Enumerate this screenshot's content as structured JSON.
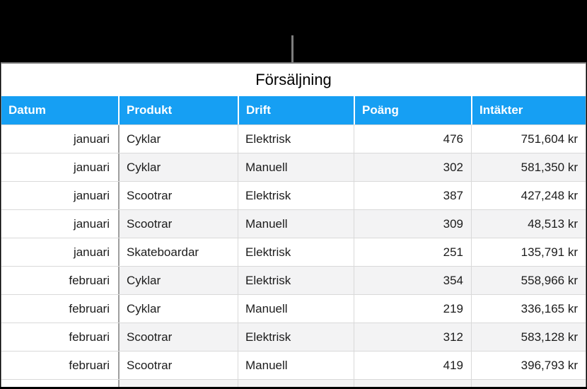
{
  "callout": {
    "description": "gray pointer line from black area to table title"
  },
  "table": {
    "title": "Försäljning",
    "columns": [
      {
        "key": "datum",
        "label": "Datum"
      },
      {
        "key": "produkt",
        "label": "Produkt"
      },
      {
        "key": "drift",
        "label": "Drift"
      },
      {
        "key": "poang",
        "label": "Poäng"
      },
      {
        "key": "intakter",
        "label": "Intäkter"
      }
    ],
    "rows": [
      {
        "datum": "januari",
        "produkt": "Cyklar",
        "drift": "Elektrisk",
        "poang": "476",
        "intakter": "751,604 kr"
      },
      {
        "datum": "januari",
        "produkt": "Cyklar",
        "drift": "Manuell",
        "poang": "302",
        "intakter": "581,350 kr"
      },
      {
        "datum": "januari",
        "produkt": "Scootrar",
        "drift": "Elektrisk",
        "poang": "387",
        "intakter": "427,248 kr"
      },
      {
        "datum": "januari",
        "produkt": "Scootrar",
        "drift": "Manuell",
        "poang": "309",
        "intakter": "48,513 kr"
      },
      {
        "datum": "januari",
        "produkt": "Skateboardar",
        "drift": "Elektrisk",
        "poang": "251",
        "intakter": "135,791 kr"
      },
      {
        "datum": "februari",
        "produkt": "Cyklar",
        "drift": "Elektrisk",
        "poang": "354",
        "intakter": "558,966 kr"
      },
      {
        "datum": "februari",
        "produkt": "Cyklar",
        "drift": "Manuell",
        "poang": "219",
        "intakter": "336,165 kr"
      },
      {
        "datum": "februari",
        "produkt": "Scootrar",
        "drift": "Elektrisk",
        "poang": "312",
        "intakter": "583,128 kr"
      },
      {
        "datum": "februari",
        "produkt": "Scootrar",
        "drift": "Manuell",
        "poang": "419",
        "intakter": "396,793 kr"
      }
    ],
    "partial_row_at_bottom": true
  },
  "colors": {
    "header_bg": "#169ff3",
    "header_text": "#ffffff",
    "alt_row_bg": "#f3f3f4",
    "grid_line": "#d9d9d9",
    "header_column_line": "#9e9e9e",
    "outer_border": "#7d7d7d",
    "callout_line": "#7d7d7d",
    "surround": "#000000",
    "body_text": "#1c1c1c"
  }
}
